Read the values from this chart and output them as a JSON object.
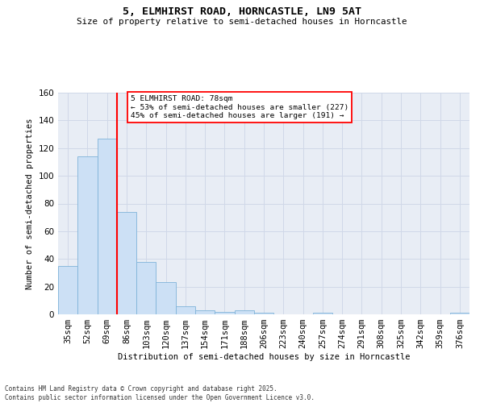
{
  "title1": "5, ELMHIRST ROAD, HORNCASTLE, LN9 5AT",
  "title2": "Size of property relative to semi-detached houses in Horncastle",
  "xlabel": "Distribution of semi-detached houses by size in Horncastle",
  "ylabel": "Number of semi-detached properties",
  "categories": [
    "35sqm",
    "52sqm",
    "69sqm",
    "86sqm",
    "103sqm",
    "120sqm",
    "137sqm",
    "154sqm",
    "171sqm",
    "188sqm",
    "206sqm",
    "223sqm",
    "240sqm",
    "257sqm",
    "274sqm",
    "291sqm",
    "308sqm",
    "325sqm",
    "342sqm",
    "359sqm",
    "376sqm"
  ],
  "values": [
    35,
    114,
    127,
    74,
    38,
    23,
    6,
    3,
    2,
    3,
    1,
    0,
    0,
    1,
    0,
    0,
    0,
    0,
    0,
    0,
    1
  ],
  "bar_color": "#cce0f5",
  "bar_edge_color": "#7fb3d9",
  "vline_x": 2.5,
  "vline_color": "red",
  "annotation_title": "5 ELMHIRST ROAD: 78sqm",
  "annotation_line1": "← 53% of semi-detached houses are smaller (227)",
  "annotation_line2": "45% of semi-detached houses are larger (191) →",
  "annotation_box_color": "white",
  "annotation_box_edge": "red",
  "footnote1": "Contains HM Land Registry data © Crown copyright and database right 2025.",
  "footnote2": "Contains public sector information licensed under the Open Government Licence v3.0.",
  "ylim": [
    0,
    160
  ],
  "yticks": [
    0,
    20,
    40,
    60,
    80,
    100,
    120,
    140,
    160
  ],
  "grid_color": "#d0d8e8",
  "bg_color": "#e8edf5",
  "fig_width": 6.0,
  "fig_height": 5.0,
  "dpi": 100
}
